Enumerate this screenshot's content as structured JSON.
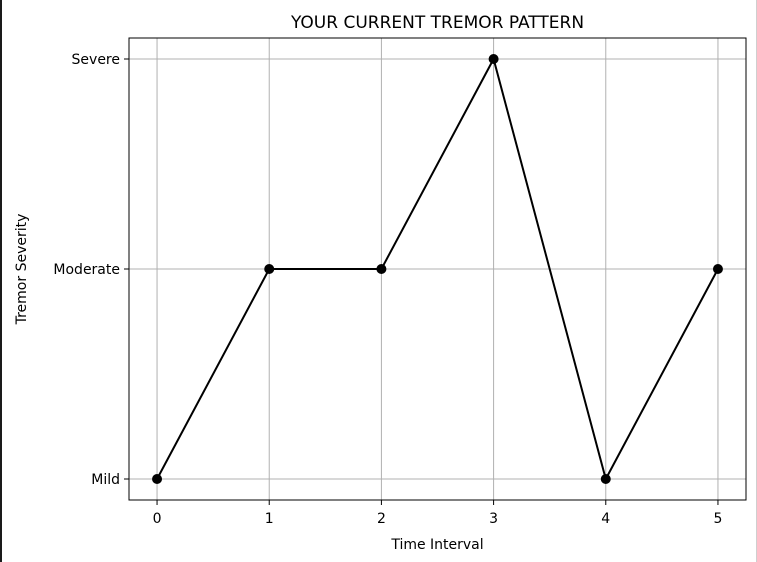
{
  "chart_data": {
    "type": "line",
    "title": "YOUR CURRENT TREMOR PATTERN",
    "xlabel": "Time Interval",
    "ylabel": "Tremor Severity",
    "x": [
      0,
      1,
      2,
      3,
      4,
      5
    ],
    "y": [
      1,
      2,
      2,
      3,
      1,
      2
    ],
    "x_ticks": [
      0,
      1,
      2,
      3,
      4,
      5
    ],
    "y_ticks": [
      {
        "value": 1,
        "label": "Mild"
      },
      {
        "value": 2,
        "label": "Moderate"
      },
      {
        "value": 3,
        "label": "Severe"
      }
    ],
    "xlim": [
      -0.25,
      5.25
    ],
    "ylim": [
      0.9,
      3.1
    ],
    "grid": true,
    "line_color": "#000000",
    "marker": "circle",
    "grid_color": "#b0b0b0"
  }
}
